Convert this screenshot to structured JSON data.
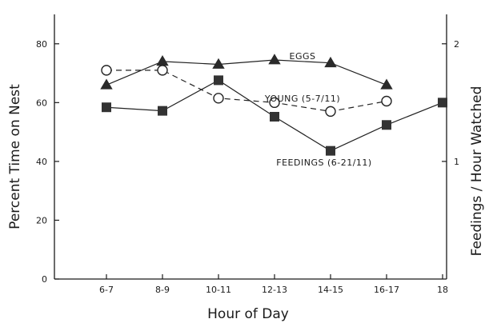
{
  "chart_data": {
    "type": "line",
    "title": "",
    "xlabel": "Hour of Day",
    "ylabel": "Percent Time on Nest",
    "y2label": "Feedings / Hour Watched",
    "categories": [
      "6-7",
      "8-9",
      "10-11",
      "12-13",
      "14-15",
      "16-17",
      "18"
    ],
    "ylim": [
      0,
      90
    ],
    "y_ticks": [
      "0",
      "20",
      "40",
      "60",
      "80"
    ],
    "y2lim": [
      0,
      2.25
    ],
    "y2_ticks": [
      "1",
      "2"
    ],
    "grid": false,
    "series": [
      {
        "name": "EGGS",
        "axis": "left",
        "marker": "triangle",
        "line_style": "solid",
        "values": [
          66,
          74,
          73,
          74.5,
          73.5,
          66,
          null
        ]
      },
      {
        "name": "YOUNG (5-7/11)",
        "axis": "left",
        "marker": "open-circle",
        "line_style": "dashed",
        "values": [
          71,
          71,
          61.5,
          60,
          57,
          60.5,
          null
        ]
      },
      {
        "name": "FEEDINGS (6-21/11)",
        "axis": "right",
        "marker": "square",
        "line_style": "solid",
        "values": [
          1.46,
          1.43,
          1.69,
          1.38,
          1.09,
          1.31,
          1.5
        ]
      }
    ]
  }
}
